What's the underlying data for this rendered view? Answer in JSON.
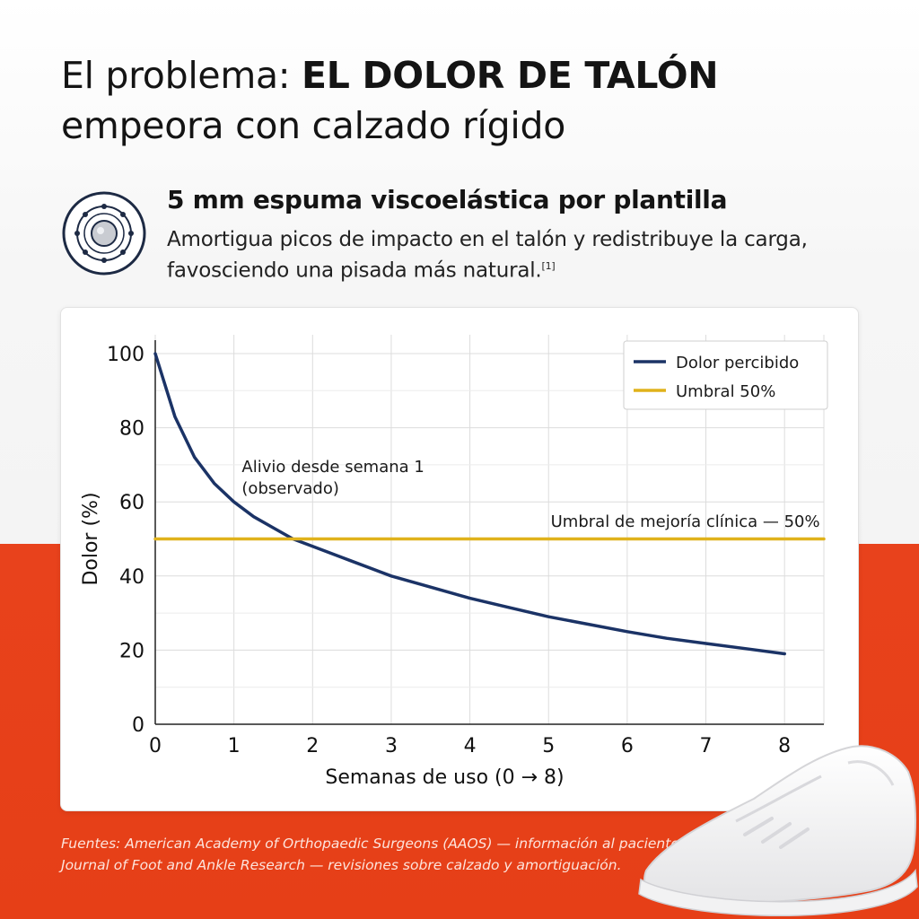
{
  "header": {
    "title_prefix": "El problema: ",
    "title_emphasis": "EL DOLOR DE TALÓN",
    "title_line2": "empeora con calzado rígido"
  },
  "feature": {
    "icon": "foam-layers-icon",
    "title": "5 mm espuma viscoelástica por plantilla",
    "description": "Amortigua picos de impacto en el talón y redistribuye la carga, favosciendo una pisada más natural.",
    "citation": "[1]"
  },
  "chart_data": {
    "type": "line",
    "xlabel": "Semanas de uso (0 → 8)",
    "ylabel": "Dolor (%)",
    "xlim": [
      0,
      8
    ],
    "ylim": [
      0,
      100
    ],
    "xticks": [
      "0",
      "1",
      "2",
      "3",
      "4",
      "5",
      "6",
      "7",
      "8"
    ],
    "yticks": [
      "0",
      "20",
      "40",
      "60",
      "80",
      "100"
    ],
    "grid": true,
    "legend_position": "top-right",
    "series": [
      {
        "name": "Dolor percibido",
        "color": "#1b3366",
        "x": [
          0,
          0.25,
          0.5,
          0.75,
          1,
          1.25,
          1.5,
          1.75,
          2,
          2.5,
          3,
          3.5,
          4,
          4.5,
          5,
          5.5,
          6,
          6.5,
          7,
          7.5,
          8
        ],
        "y": [
          100,
          83,
          72,
          65,
          60,
          56,
          53,
          50,
          48,
          44,
          40,
          37,
          34,
          31.5,
          29,
          27,
          25,
          23.2,
          21.8,
          20.4,
          19
        ]
      },
      {
        "name": "Umbral 50%",
        "color": "#e0b21b",
        "x": [
          0,
          8.5
        ],
        "y": [
          50,
          50
        ]
      }
    ],
    "annotations": [
      {
        "text_line1": "Alivio desde semana 1",
        "text_line2": "(observado)",
        "x": 1.1,
        "y": 68
      },
      {
        "text": "Umbral de mejoría clínica — 50%",
        "x": 8.45,
        "y": 52.5
      }
    ]
  },
  "sources": {
    "text": "Fuentes: American Academy of Orthopaedic Surgeons (AAOS) — información al paciente sobre fascitis plantar; Journal of Foot and Ankle Research — revisiones sobre calzado y amortiguación."
  },
  "colors": {
    "accent_red": "#e8421c",
    "navy": "#1b3366",
    "gold": "#e0b21b"
  }
}
